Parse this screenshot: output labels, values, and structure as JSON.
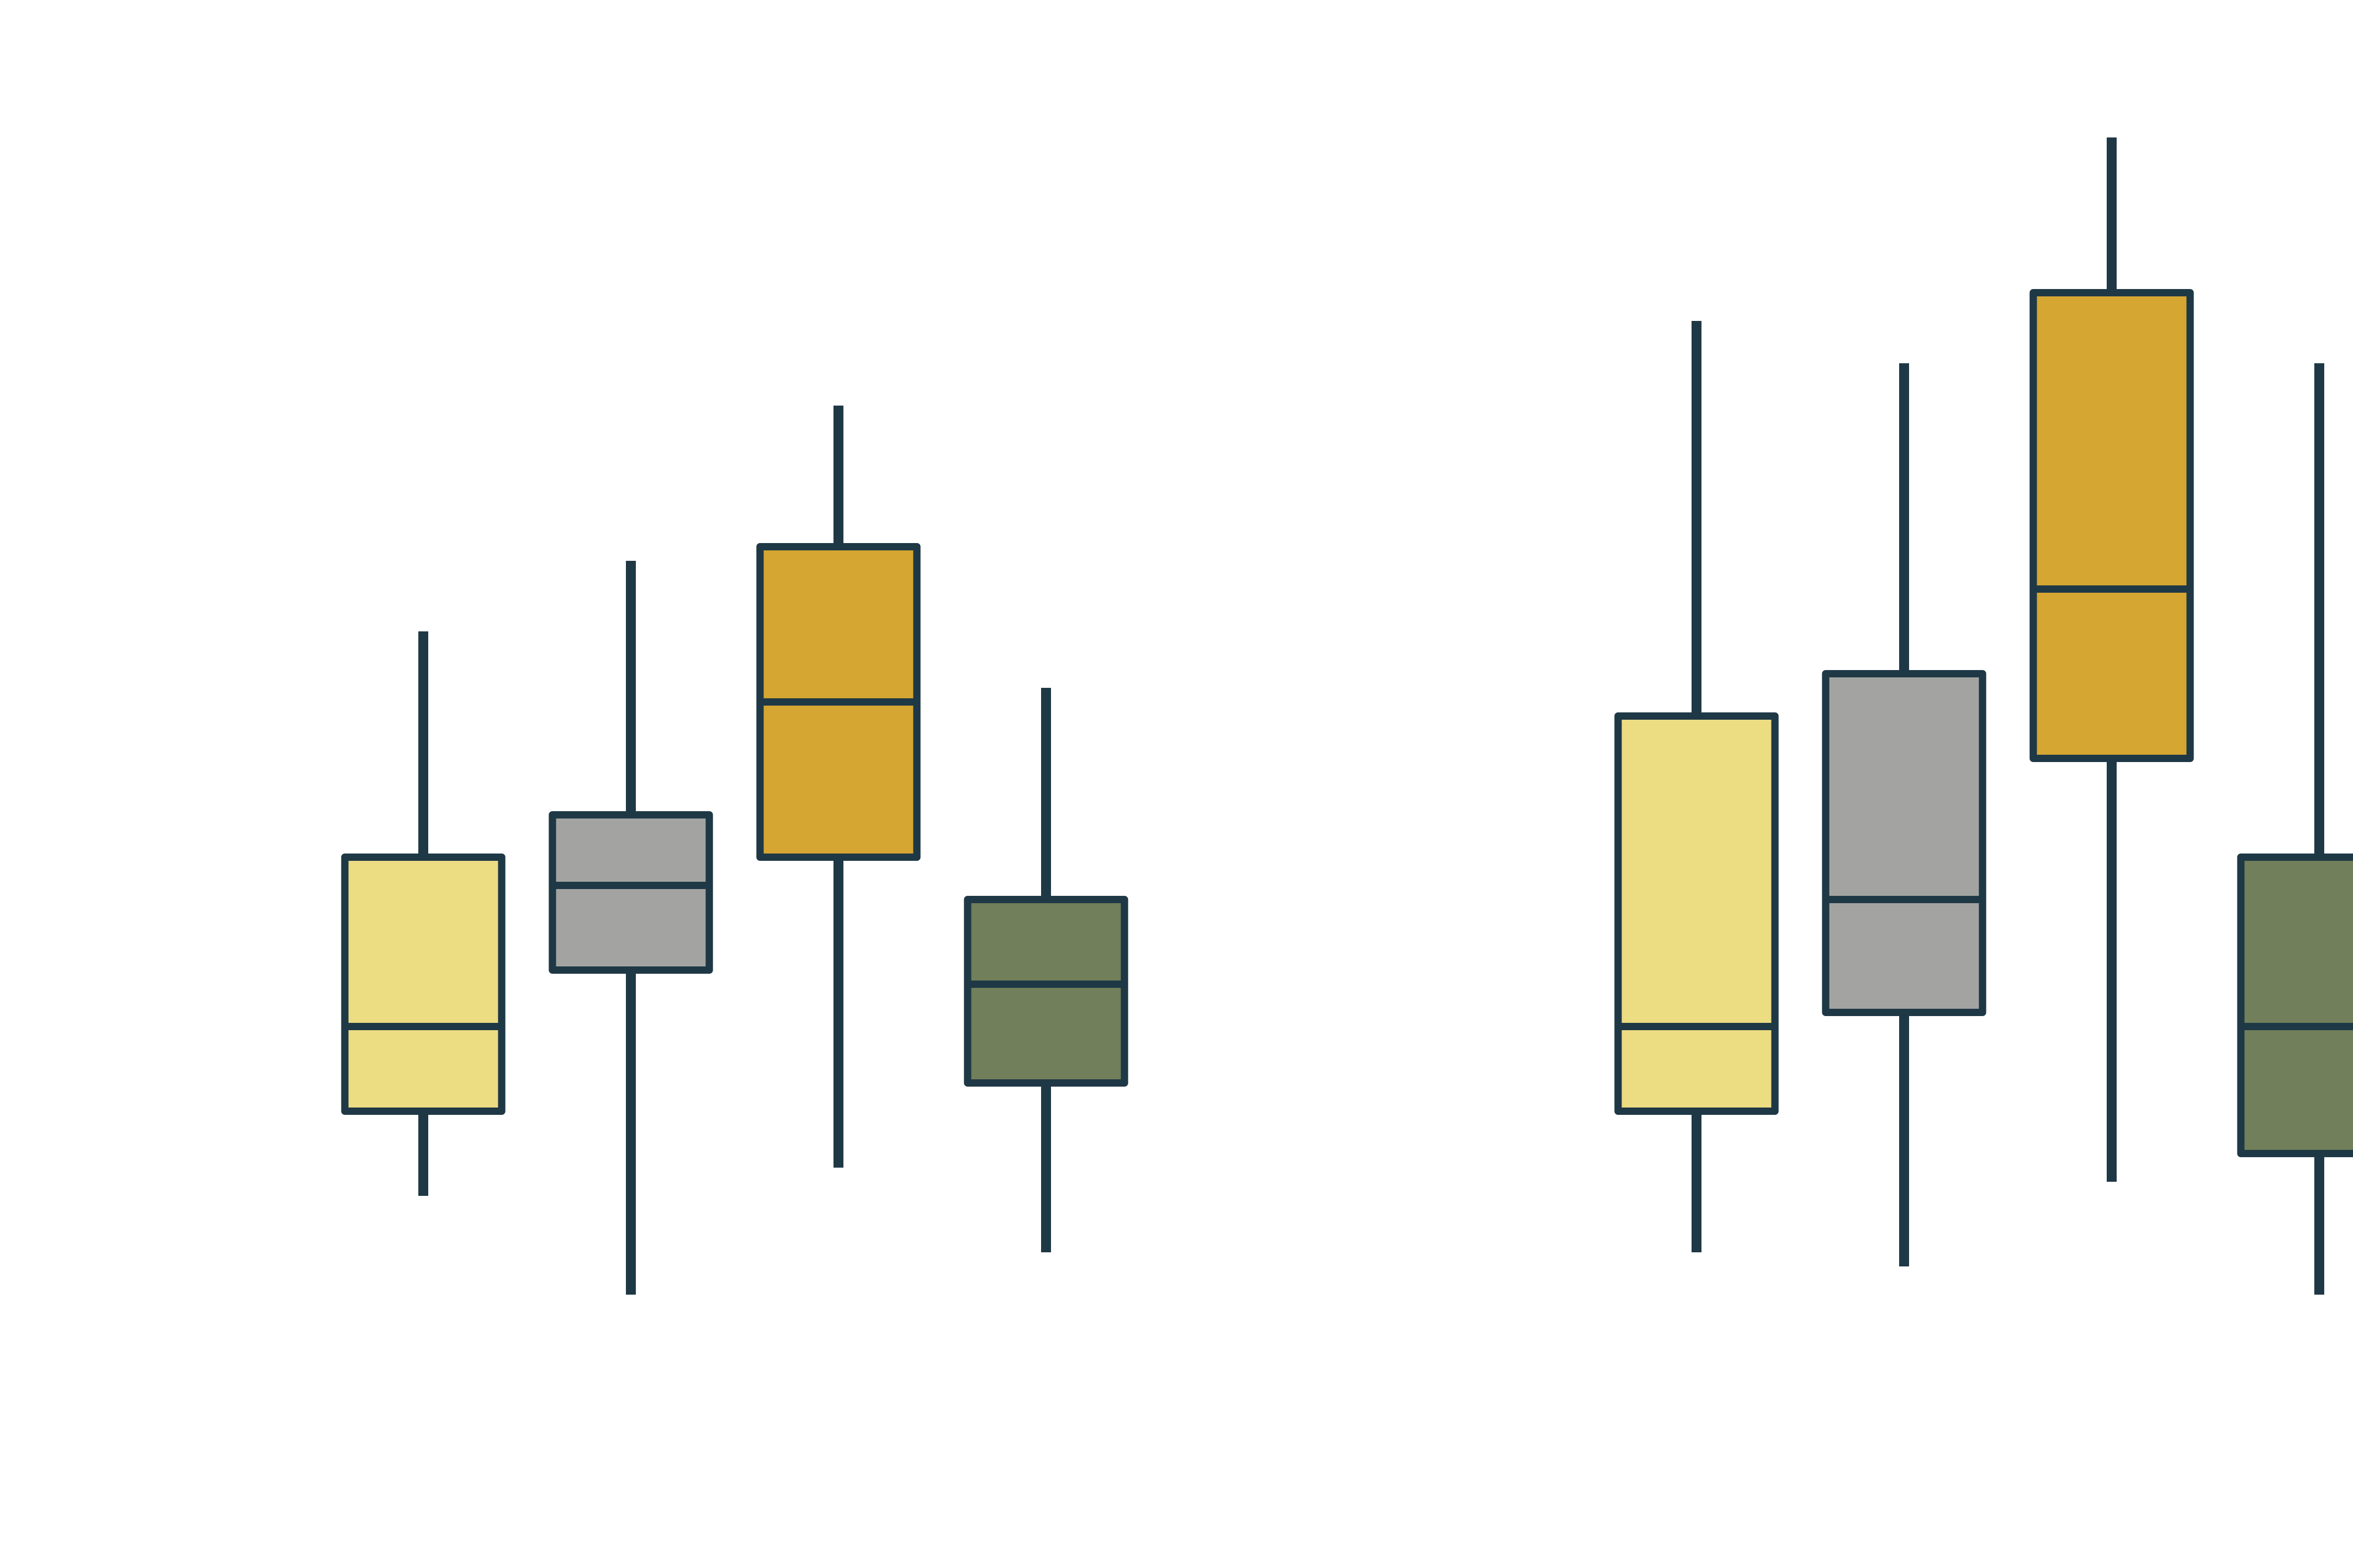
{
  "chart_data": {
    "type": "boxplot",
    "groups": [
      "",
      ""
    ],
    "series_colors": [
      "#ECDC82",
      "#A3A4A1",
      "#D5A632",
      "#717F5A"
    ],
    "stroke_color": "#1F3846",
    "background": "#FFFFFF",
    "ylim": [
      0,
      100
    ],
    "grid": false,
    "legend": "none",
    "boxes": [
      {
        "group": 0,
        "series": 0,
        "whisker_low": 21,
        "q1": 27,
        "median": 33,
        "q3": 45,
        "whisker_high": 61
      },
      {
        "group": 0,
        "series": 1,
        "whisker_low": 14,
        "q1": 37,
        "median": 43,
        "q3": 48,
        "whisker_high": 66
      },
      {
        "group": 0,
        "series": 2,
        "whisker_low": 23,
        "q1": 45,
        "median": 56,
        "q3": 67,
        "whisker_high": 77
      },
      {
        "group": 0,
        "series": 3,
        "whisker_low": 17,
        "q1": 29,
        "median": 36,
        "q3": 42,
        "whisker_high": 57
      },
      {
        "group": 1,
        "series": 0,
        "whisker_low": 17,
        "q1": 27,
        "median": 33,
        "q3": 55,
        "whisker_high": 83
      },
      {
        "group": 1,
        "series": 1,
        "whisker_low": 16,
        "q1": 34,
        "median": 42,
        "q3": 58,
        "whisker_high": 80
      },
      {
        "group": 1,
        "series": 2,
        "whisker_low": 22,
        "q1": 52,
        "median": 64,
        "q3": 85,
        "whisker_high": 96
      },
      {
        "group": 1,
        "series": 3,
        "whisker_low": 14,
        "q1": 24,
        "median": 33,
        "q3": 45,
        "whisker_high": 80
      }
    ]
  }
}
